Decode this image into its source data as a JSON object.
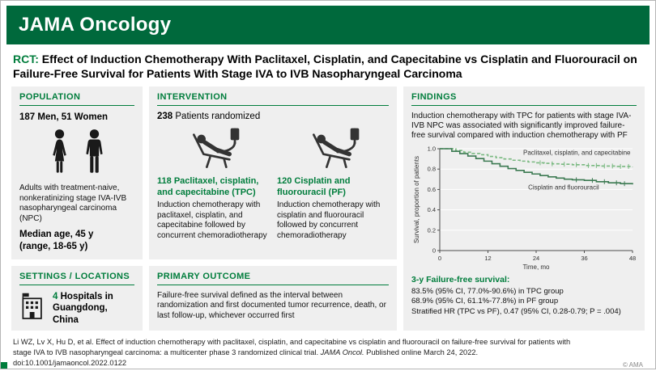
{
  "colors": {
    "brand_green": "#00693c",
    "accent_green": "#007d3c",
    "panel_gray": "#efefef",
    "tpc_line_green": "#79b980",
    "pf_line_green": "#3c7a52"
  },
  "header": {
    "brand": "JAMA Oncology"
  },
  "title": {
    "tag": "RCT:",
    "text": "Effect of Induction Chemotherapy With Paclitaxel, Cisplatin, and Capecitabine vs Cisplatin and Fluorouracil on Failure-Free Survival for Patients With Stage IVA to IVB Nasopharyngeal Carcinoma"
  },
  "population": {
    "heading": "POPULATION",
    "line1": "187 Men, 51 Women",
    "icons": [
      "woman-icon",
      "man-icon"
    ],
    "desc": "Adults with treatment-naive, nonkeratinizing stage IVA-IVB nasopharyngeal carcinoma (NPC)",
    "age_line1": "Median age, 45 y",
    "age_line2": "(range, 18-65 y)"
  },
  "intervention": {
    "heading": "INTERVENTION",
    "randomized_n": "238",
    "randomized_label": "Patients randomized",
    "arms": [
      {
        "n": "118",
        "name": "Paclitaxel, cisplatin, and capecitabine (TPC)",
        "desc": "Induction chemotherapy with paclitaxel, cisplatin, and capecitabine followed by concurrent chemoradiotherapy",
        "icon": "infusion-chair-icon"
      },
      {
        "n": "120",
        "name": "Cisplatin and fluorouracil (PF)",
        "desc": "Induction chemotherapy with cisplatin and fluorouracil followed by concurrent chemoradiotherapy",
        "icon": "infusion-chair-icon"
      }
    ]
  },
  "settings": {
    "heading": "SETTINGS / LOCATIONS",
    "n": "4",
    "text": "Hospitals in Guangdong, China",
    "icon": "hospital-icon"
  },
  "outcome": {
    "heading": "PRIMARY OUTCOME",
    "text": "Failure-free survival defined as the interval between randomization and first documented tumor recurrence, death, or last follow-up, whichever occurred first"
  },
  "findings": {
    "heading": "FINDINGS",
    "summary": "Induction chemotherapy with TPC for patients with stage IVA-IVB NPC was associated with significantly improved failure-free survival compared with induction chemotherapy with PF",
    "results_heading": "3-y Failure-free survival:",
    "results": [
      "83.5% (95% CI, 77.0%-90.6%) in TPC group",
      "68.9% (95% CI, 61.1%-77.8%) in PF group",
      "Stratified HR (TPC vs PF), 0.47 (95% CI, 0.28-0.79; P = .004)"
    ]
  },
  "chart_data": {
    "type": "line",
    "subtype": "kaplan-meier-step",
    "title": "",
    "xlabel": "Time, mo",
    "ylabel": "Survival, proportion of patients",
    "xlim": [
      0,
      48
    ],
    "xticks": [
      0,
      12,
      24,
      36,
      48
    ],
    "ylim": [
      0,
      1.0
    ],
    "yticks": [
      0,
      0.2,
      0.4,
      0.6,
      0.8,
      1.0
    ],
    "grid": "horizontal-white",
    "legend_position": "inline-labels",
    "series": [
      {
        "name": "Paclitaxel, cisplatin, and capecitabine",
        "color": "#79b980",
        "dash": true,
        "x": [
          0,
          4,
          6,
          8,
          10,
          12,
          14,
          16,
          18,
          20,
          22,
          24,
          26,
          28,
          30,
          33,
          36,
          40,
          44,
          48
        ],
        "y": [
          1.0,
          0.983,
          0.966,
          0.953,
          0.941,
          0.924,
          0.912,
          0.899,
          0.887,
          0.878,
          0.87,
          0.862,
          0.857,
          0.852,
          0.848,
          0.843,
          0.835,
          0.83,
          0.826,
          0.822
        ],
        "censors": [
          25,
          28,
          31,
          34,
          37,
          39,
          41,
          43,
          45,
          47
        ]
      },
      {
        "name": "Cisplatin and fluorouracil",
        "color": "#3c7a52",
        "dash": false,
        "x": [
          0,
          3,
          5,
          7,
          9,
          11,
          13,
          15,
          17,
          19,
          21,
          23,
          25,
          27,
          29,
          31,
          33,
          36,
          39,
          42,
          45,
          48
        ],
        "y": [
          1.0,
          0.975,
          0.952,
          0.928,
          0.903,
          0.878,
          0.853,
          0.828,
          0.805,
          0.787,
          0.768,
          0.752,
          0.737,
          0.724,
          0.712,
          0.701,
          0.695,
          0.689,
          0.676,
          0.665,
          0.657,
          0.65
        ],
        "censors": [
          34,
          38,
          41,
          44,
          46
        ]
      }
    ],
    "annotations": [
      {
        "text": "Paclitaxel, cisplatin, and capecitabine",
        "x": 47.5,
        "y": 0.94,
        "anchor": "end"
      },
      {
        "text": "Cisplatin and fluorouracil",
        "x": 22,
        "y": 0.6,
        "anchor": "start"
      }
    ]
  },
  "footer": {
    "citation_part1": "Li WZ, Lv X, Hu D, et al. Effect of induction chemotherapy with paclitaxel, cisplatin, and capecitabine vs cisplatin and fluorouracil on failure-free survival for patients with stage IVA to IVB nasopharyngeal carcinoma: a multicenter phase 3 randomized clinical trial. ",
    "citation_journal": "JAMA Oncol.",
    "citation_part2": " Published online March 24, 2022. doi:10.1001/jamaoncol.2022.0122",
    "copyright": "© AMA"
  }
}
